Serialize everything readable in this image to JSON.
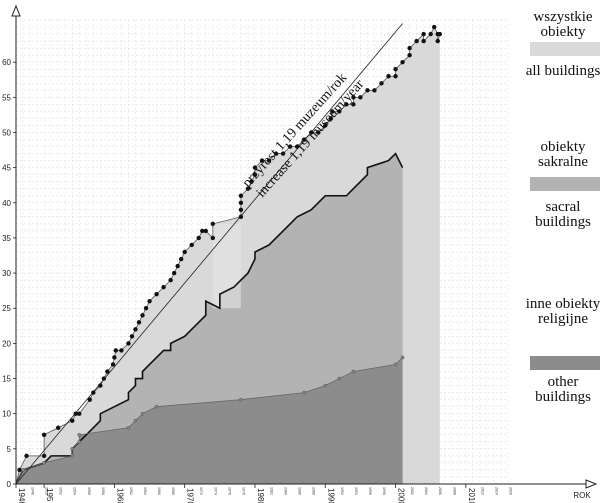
{
  "chart_data": {
    "type": "area",
    "xlabel": "ROK",
    "ylabel": "",
    "xlim": [
      1946,
      2016
    ],
    "ylim": [
      0,
      66
    ],
    "yticks": [
      0,
      5,
      10,
      15,
      20,
      25,
      30,
      35,
      40,
      45,
      50,
      55,
      60
    ],
    "xtick_labels": [
      {
        "year": 1946,
        "text": "1946"
      },
      {
        "year": 1950,
        "text": "195"
      },
      {
        "year": 1960,
        "text": "1960"
      },
      {
        "year": 1970,
        "text": "1970"
      },
      {
        "year": 1980,
        "text": "1980"
      },
      {
        "year": 1990,
        "text": "1990"
      },
      {
        "year": 2000,
        "text": "2000"
      },
      {
        "year": 2010,
        "text": "2010"
      }
    ],
    "minor_year_labels": [
      "1948",
      "1950",
      "1952",
      "1954",
      "1956",
      "1958",
      "1962",
      "1964",
      "1966",
      "1968",
      "1972",
      "1974",
      "1976",
      "1978",
      "1982",
      "1984",
      "1986",
      "1988",
      "1992",
      "1994",
      "1996",
      "1998",
      "2002",
      "2004",
      "2006",
      "2008",
      "2012",
      "2014",
      "2016"
    ],
    "grid": true,
    "series": [
      {
        "name": "wszystkie obiekty",
        "name_en": "all buildings",
        "color": "#d9d9d9",
        "points": [
          [
            1946,
            0
          ],
          [
            1946.5,
            2
          ],
          [
            1947.5,
            4
          ],
          [
            1950,
            4
          ],
          [
            1950,
            7
          ],
          [
            1952,
            8
          ],
          [
            1954,
            9
          ],
          [
            1954.5,
            10
          ],
          [
            1955,
            10
          ],
          [
            1956.5,
            12
          ],
          [
            1957,
            13
          ],
          [
            1958,
            14
          ],
          [
            1958.5,
            15
          ],
          [
            1959,
            16
          ],
          [
            1959.8,
            17
          ],
          [
            1960,
            18
          ],
          [
            1960.2,
            19
          ],
          [
            1961,
            19
          ],
          [
            1962,
            20
          ],
          [
            1962.5,
            21
          ],
          [
            1963,
            22
          ],
          [
            1963.5,
            23
          ],
          [
            1964,
            24
          ],
          [
            1964.5,
            25
          ],
          [
            1965,
            26
          ],
          [
            1966,
            27
          ],
          [
            1967,
            28
          ],
          [
            1968,
            29
          ],
          [
            1968.5,
            30
          ],
          [
            1969,
            31
          ],
          [
            1969.5,
            32
          ],
          [
            1970,
            33
          ],
          [
            1971,
            34
          ],
          [
            1972,
            35
          ],
          [
            1972.5,
            36
          ],
          [
            1973,
            36
          ],
          [
            1974,
            35
          ],
          [
            1974,
            37
          ],
          [
            1978,
            38
          ],
          [
            1978,
            39
          ],
          [
            1978,
            40
          ],
          [
            1978,
            41
          ],
          [
            1979,
            42
          ],
          [
            1979.5,
            43
          ],
          [
            1980,
            44
          ],
          [
            1980,
            45
          ],
          [
            1981,
            46
          ],
          [
            1982,
            46
          ],
          [
            1983,
            47
          ],
          [
            1984,
            47
          ],
          [
            1985,
            48
          ],
          [
            1986,
            48
          ],
          [
            1987,
            49
          ],
          [
            1988,
            50
          ],
          [
            1989,
            50
          ],
          [
            1990,
            51
          ],
          [
            1990.8,
            52
          ],
          [
            1991,
            53
          ],
          [
            1992,
            53
          ],
          [
            1993,
            54
          ],
          [
            1994,
            54
          ],
          [
            1994,
            55
          ],
          [
            1995,
            55
          ],
          [
            1996,
            56
          ],
          [
            1997,
            56
          ],
          [
            1998,
            57
          ],
          [
            1999,
            58
          ],
          [
            2000,
            58
          ],
          [
            2000,
            59
          ],
          [
            2001,
            60
          ],
          [
            2002,
            61
          ],
          [
            2002,
            62
          ],
          [
            2003,
            63
          ],
          [
            2004,
            64
          ],
          [
            2004,
            63
          ],
          [
            2005,
            64
          ],
          [
            2005.5,
            65
          ],
          [
            2006,
            64
          ],
          [
            2006,
            63
          ],
          [
            2006.3,
            64
          ]
        ]
      },
      {
        "name": "obiekty sakralne",
        "name_en": "sacral buildings",
        "color": "#b3b3b3",
        "points": [
          [
            1946,
            0
          ],
          [
            1947,
            2
          ],
          [
            1950,
            3
          ],
          [
            1951,
            4
          ],
          [
            1954,
            4
          ],
          [
            1954,
            5
          ],
          [
            1955,
            6
          ],
          [
            1956,
            7
          ],
          [
            1957,
            8
          ],
          [
            1958,
            9
          ],
          [
            1958,
            10
          ],
          [
            1960,
            11
          ],
          [
            1962,
            12
          ],
          [
            1962,
            13
          ],
          [
            1963,
            14
          ],
          [
            1963,
            15
          ],
          [
            1964,
            15
          ],
          [
            1964,
            16
          ],
          [
            1965,
            17
          ],
          [
            1966,
            18
          ],
          [
            1967,
            19
          ],
          [
            1968,
            19
          ],
          [
            1968,
            20
          ],
          [
            1970,
            21
          ],
          [
            1971,
            22
          ],
          [
            1972,
            23
          ],
          [
            1973,
            24
          ],
          [
            1973,
            26
          ],
          [
            1975,
            25
          ],
          [
            1975,
            27
          ],
          [
            1977,
            28
          ],
          [
            1978,
            29
          ],
          [
            1979,
            30
          ],
          [
            1980,
            32
          ],
          [
            1980,
            33
          ],
          [
            1982,
            34
          ],
          [
            1983,
            35
          ],
          [
            1984,
            36
          ],
          [
            1985,
            37
          ],
          [
            1986,
            38
          ],
          [
            1988,
            39
          ],
          [
            1989,
            40
          ],
          [
            1990,
            41
          ],
          [
            1993,
            41
          ],
          [
            1994,
            42
          ],
          [
            1995,
            43
          ],
          [
            1996,
            44
          ],
          [
            1996,
            45
          ],
          [
            1999,
            46
          ],
          [
            2000,
            47
          ],
          [
            2001,
            45
          ]
        ]
      },
      {
        "name": "inne obiekty religijne",
        "name_en": "other buildings",
        "color": "#8c8c8c",
        "points": [
          [
            1946,
            0
          ],
          [
            1947,
            2
          ],
          [
            1950,
            3
          ],
          [
            1954,
            4
          ],
          [
            1954,
            5
          ],
          [
            1955,
            6
          ],
          [
            1955,
            7
          ],
          [
            1962,
            8
          ],
          [
            1963,
            9
          ],
          [
            1964,
            10
          ],
          [
            1966,
            11
          ],
          [
            1978,
            12
          ],
          [
            1987,
            13
          ],
          [
            1990,
            14
          ],
          [
            1992,
            15
          ],
          [
            1994,
            16
          ],
          [
            2000,
            17
          ],
          [
            2001,
            18
          ]
        ]
      }
    ],
    "trend_line": {
      "slope": 1.19,
      "from": [
        1946,
        0
      ],
      "to": [
        2001,
        65.5
      ]
    },
    "annotations": [
      "przyrost 1,19 muzeum/rok",
      "increase 1,19 museum/year"
    ]
  },
  "legend": {
    "all_pl": "wszystkie obiekty",
    "all_en": "all buildings",
    "sacral_pl": "obiekty sakralne",
    "sacral_en": "sacral buildings",
    "other_pl": "inne obiekty religijne",
    "other_en": "other buildings"
  },
  "colors": {
    "all": "#d9d9d9",
    "sacral": "#b3b3b3",
    "other": "#8c8c8c",
    "highlight": "#e8e8e8"
  }
}
